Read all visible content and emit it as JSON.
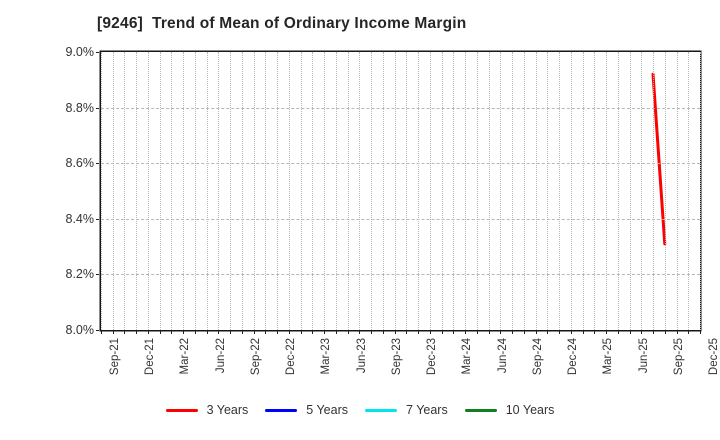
{
  "title": "[9246]  Trend of Mean of Ordinary Income Margin",
  "chart_data": {
    "type": "line",
    "title": "[9246]  Trend of Mean of Ordinary Income Margin",
    "ylabel": "",
    "xlabel": "",
    "y_unit": "%",
    "ylim": [
      8.0,
      9.0
    ],
    "y_ticks": [
      "9.0%",
      "8.8%",
      "8.6%",
      "8.4%",
      "8.2%",
      "8.0%"
    ],
    "y_tick_values": [
      9.0,
      8.8,
      8.6,
      8.4,
      8.2,
      8.0
    ],
    "x_ticks": [
      "Sep-21",
      "Dec-21",
      "Mar-22",
      "Jun-22",
      "Sep-22",
      "Dec-22",
      "Mar-23",
      "Jun-23",
      "Sep-23",
      "Dec-23",
      "Mar-24",
      "Jun-24",
      "Sep-24",
      "Dec-24",
      "Mar-25",
      "Jun-25",
      "Sep-25",
      "Dec-25"
    ],
    "x_range_months": [
      "Sep-21",
      "Dec-25"
    ],
    "grid": true,
    "grid_color": "#b8b8b8",
    "axis_color": "#161616",
    "legend_position": "bottom",
    "series": [
      {
        "name": "3 Years",
        "color": "#ff0000",
        "points": [
          {
            "x": "Aug-25",
            "y": 8.92
          },
          {
            "x": "Sep-25",
            "y": 8.31
          }
        ]
      },
      {
        "name": "5 Years",
        "color": "#0000ff",
        "points": []
      },
      {
        "name": "7 Years",
        "color": "#00e5ee",
        "points": []
      },
      {
        "name": "10 Years",
        "color": "#0e8020",
        "points": []
      }
    ]
  }
}
